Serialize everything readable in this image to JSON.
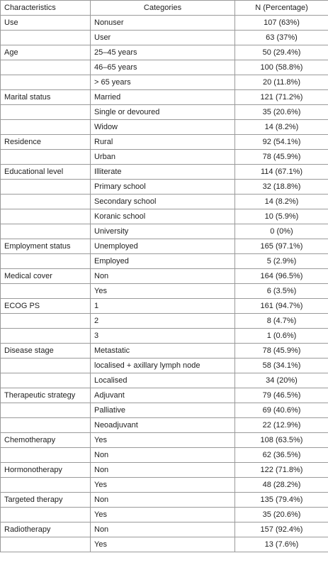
{
  "table": {
    "header": [
      "Characteristics",
      "Categories",
      "N (Percentage)"
    ],
    "groups": [
      {
        "characteristic": "Use",
        "rows": [
          {
            "category": "Nonuser",
            "n": "107 (63%)"
          },
          {
            "category": "User",
            "n": "63 (37%)"
          }
        ]
      },
      {
        "characteristic": "Age",
        "rows": [
          {
            "category": "25–45 years",
            "n": "50 (29.4%)"
          },
          {
            "category": "46–65 years",
            "n": "100 (58.8%)"
          },
          {
            "category": "> 65 years",
            "n": "20 (11.8%)"
          }
        ]
      },
      {
        "characteristic": "Marital status",
        "rows": [
          {
            "category": "Married",
            "n": "121 (71.2%)"
          },
          {
            "category": "Single or devoured",
            "n": "35 (20.6%)"
          },
          {
            "category": "Widow",
            "n": "14 (8.2%)"
          }
        ]
      },
      {
        "characteristic": "Residence",
        "rows": [
          {
            "category": "Rural",
            "n": "92 (54.1%)"
          },
          {
            "category": "Urban",
            "n": "78 (45.9%)"
          }
        ]
      },
      {
        "characteristic": "Educational level",
        "rows": [
          {
            "category": "Illiterate",
            "n": "114 (67.1%)"
          },
          {
            "category": "Primary school",
            "n": "32 (18.8%)"
          },
          {
            "category": "Secondary school",
            "n": "14 (8.2%)"
          },
          {
            "category": "Koranic school",
            "n": "10 (5.9%)"
          },
          {
            "category": "University",
            "n": "0 (0%)"
          }
        ]
      },
      {
        "characteristic": "Employment status",
        "rows": [
          {
            "category": "Unemployed",
            "n": "165 (97.1%)"
          },
          {
            "category": "Employed",
            "n": "5 (2.9%)"
          }
        ]
      },
      {
        "characteristic": "Medical cover",
        "rows": [
          {
            "category": "Non",
            "n": "164 (96.5%)"
          },
          {
            "category": "Yes",
            "n": "6 (3.5%)"
          }
        ]
      },
      {
        "characteristic": "ECOG PS",
        "rows": [
          {
            "category": "1",
            "n": "161 (94.7%)"
          },
          {
            "category": "2",
            "n": "8 (4.7%)"
          },
          {
            "category": "3",
            "n": "1 (0.6%)"
          }
        ]
      },
      {
        "characteristic": "Disease stage",
        "rows": [
          {
            "category": "Metastatic",
            "n": "78 (45.9%)"
          },
          {
            "category": "localised + axillary lymph node",
            "n": "58 (34.1%)"
          },
          {
            "category": "Localised",
            "n": "34 (20%)"
          }
        ]
      },
      {
        "characteristic": "Therapeutic strategy",
        "rows": [
          {
            "category": "Adjuvant",
            "n": "79 (46.5%)"
          },
          {
            "category": "Palliative",
            "n": "69 (40.6%)"
          },
          {
            "category": "Neoadjuvant",
            "n": "22 (12.9%)"
          }
        ]
      },
      {
        "characteristic": "Chemotherapy",
        "rows": [
          {
            "category": "Yes",
            "n": "108 (63.5%)"
          },
          {
            "category": "Non",
            "n": "62 (36.5%)"
          }
        ]
      },
      {
        "characteristic": "Hormonotherapy",
        "rows": [
          {
            "category": "Non",
            "n": "122 (71.8%)"
          },
          {
            "category": "Yes",
            "n": "48 (28.2%)"
          }
        ]
      },
      {
        "characteristic": "Targeted therapy",
        "rows": [
          {
            "category": "Non",
            "n": "135 (79.4%)"
          },
          {
            "category": "Yes",
            "n": "35 (20.6%)"
          }
        ]
      },
      {
        "characteristic": "Radiotherapy",
        "rows": [
          {
            "category": "Non",
            "n": "157 (92.4%)"
          },
          {
            "category": "Yes",
            "n": "13 (7.6%)"
          }
        ]
      }
    ]
  }
}
